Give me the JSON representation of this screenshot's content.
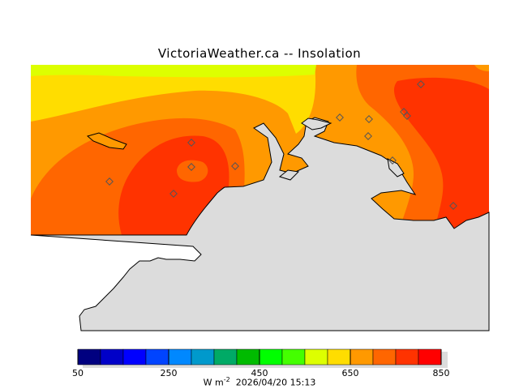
{
  "title": "VictoriaWeather.ca -- Insolation",
  "map": {
    "land_color": "#dcdcdc",
    "coast_color": "#000000",
    "station_marker_color": "#555555",
    "station_count": 13
  },
  "colorbar": {
    "min": 50,
    "max": 850,
    "step": 50,
    "colors": [
      "#000080",
      "#0000c8",
      "#0000ff",
      "#0044ff",
      "#0088ff",
      "#0099cc",
      "#00aa66",
      "#00bb00",
      "#00ff00",
      "#44ff00",
      "#ddff00",
      "#ffdd00",
      "#ff9900",
      "#ff6600",
      "#ff3300",
      "#ff0000"
    ],
    "labels": [
      "50",
      "250",
      "450",
      "650",
      "850"
    ]
  },
  "units_label": "W m",
  "units_superscript": "-2",
  "timestamp": "2026/04/20 15:13"
}
